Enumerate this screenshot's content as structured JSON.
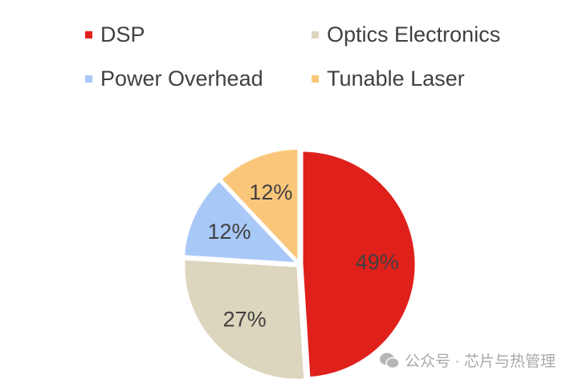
{
  "chart_data": {
    "type": "pie",
    "categories": [
      "DSP",
      "Optics Electronics",
      "Power Overhead",
      "Tunable Laser"
    ],
    "values": [
      49,
      27,
      12,
      12
    ],
    "labels": [
      "49%",
      "27%",
      "12%",
      "12%"
    ],
    "colors": [
      "#E0201B",
      "#DDD6BE",
      "#A8C8F8",
      "#FAC77A"
    ],
    "legend": "top",
    "start_angle": "12 o'clock",
    "direction": "clockwise"
  },
  "watermark": {
    "icon": "wechat-icon",
    "text": "公众号 · 芯片与热管理"
  }
}
